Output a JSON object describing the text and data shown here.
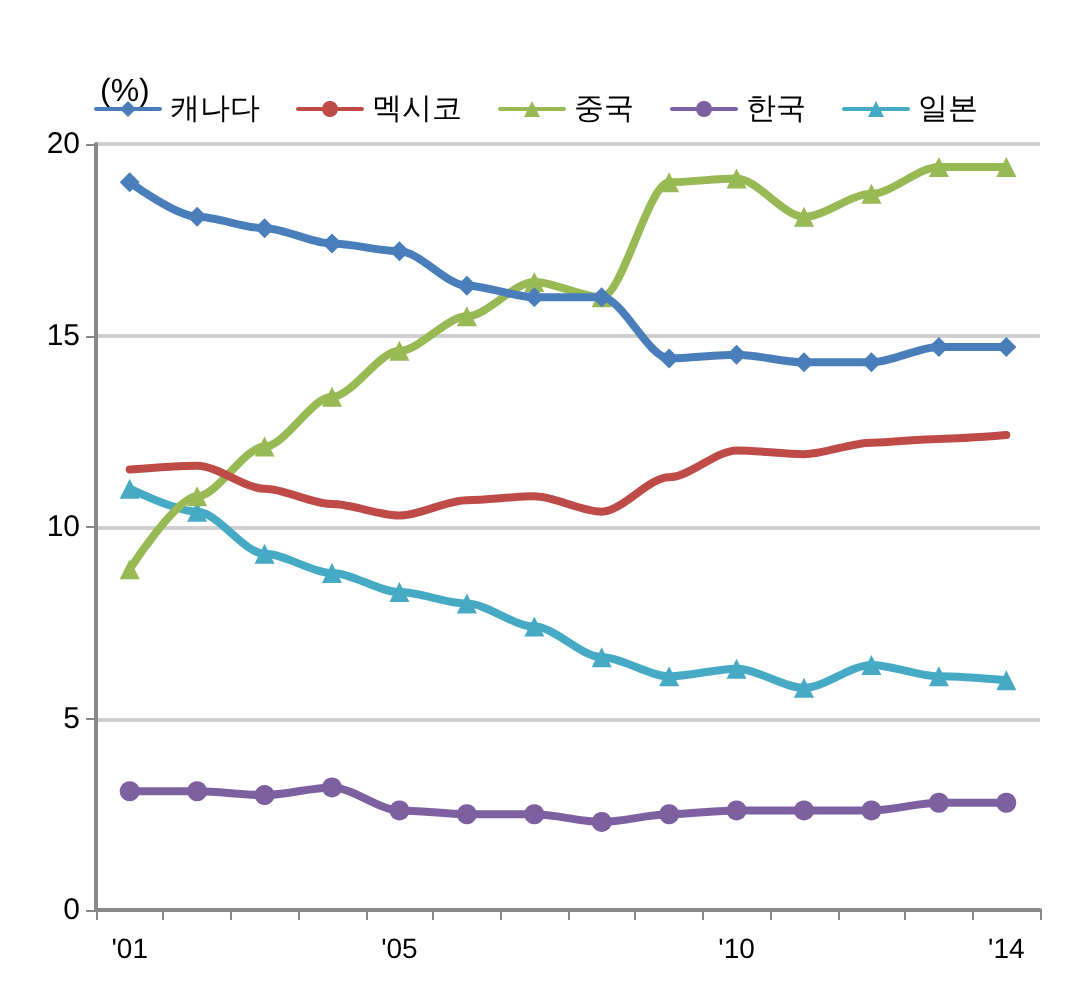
{
  "chart_data": {
    "type": "line",
    "ylabel": "(%)",
    "categories": [
      "'01",
      null,
      null,
      null,
      "'05",
      null,
      null,
      null,
      null,
      "'10",
      null,
      null,
      null,
      "'14"
    ],
    "ylim": [
      0,
      20
    ],
    "yticks": [
      0,
      5,
      10,
      15,
      20
    ],
    "grid": "y",
    "legend": "top",
    "line_style": "solid",
    "series": [
      {
        "name": "캐나다",
        "color": "#4a7ebb",
        "marker": "diamond",
        "values": [
          19.0,
          18.1,
          17.8,
          17.4,
          17.2,
          16.3,
          16.0,
          16.0,
          14.4,
          14.5,
          14.3,
          14.3,
          14.7,
          14.7
        ]
      },
      {
        "name": "멕시코",
        "color": "#be4b48",
        "marker": "none",
        "values": [
          11.5,
          11.6,
          11.0,
          10.6,
          10.3,
          10.7,
          10.8,
          10.4,
          11.3,
          12.0,
          11.9,
          12.2,
          12.3,
          12.4
        ]
      },
      {
        "name": "중국",
        "color": "#98b954",
        "marker": "triangle",
        "values": [
          8.9,
          10.8,
          12.1,
          13.4,
          14.6,
          15.5,
          16.4,
          16.0,
          19.0,
          19.1,
          18.1,
          18.7,
          19.4,
          19.4
        ]
      },
      {
        "name": "한국",
        "color": "#7d60a0",
        "marker": "circle",
        "values": [
          3.1,
          3.1,
          3.0,
          3.2,
          2.6,
          2.5,
          2.5,
          2.3,
          2.5,
          2.6,
          2.6,
          2.6,
          2.8,
          2.8
        ]
      },
      {
        "name": "일본",
        "color": "#46aac5",
        "marker": "triangle",
        "values": [
          11.0,
          10.4,
          9.3,
          8.8,
          8.3,
          8.0,
          7.4,
          6.6,
          6.1,
          6.3,
          5.8,
          6.4,
          6.1,
          6.0
        ]
      }
    ]
  }
}
